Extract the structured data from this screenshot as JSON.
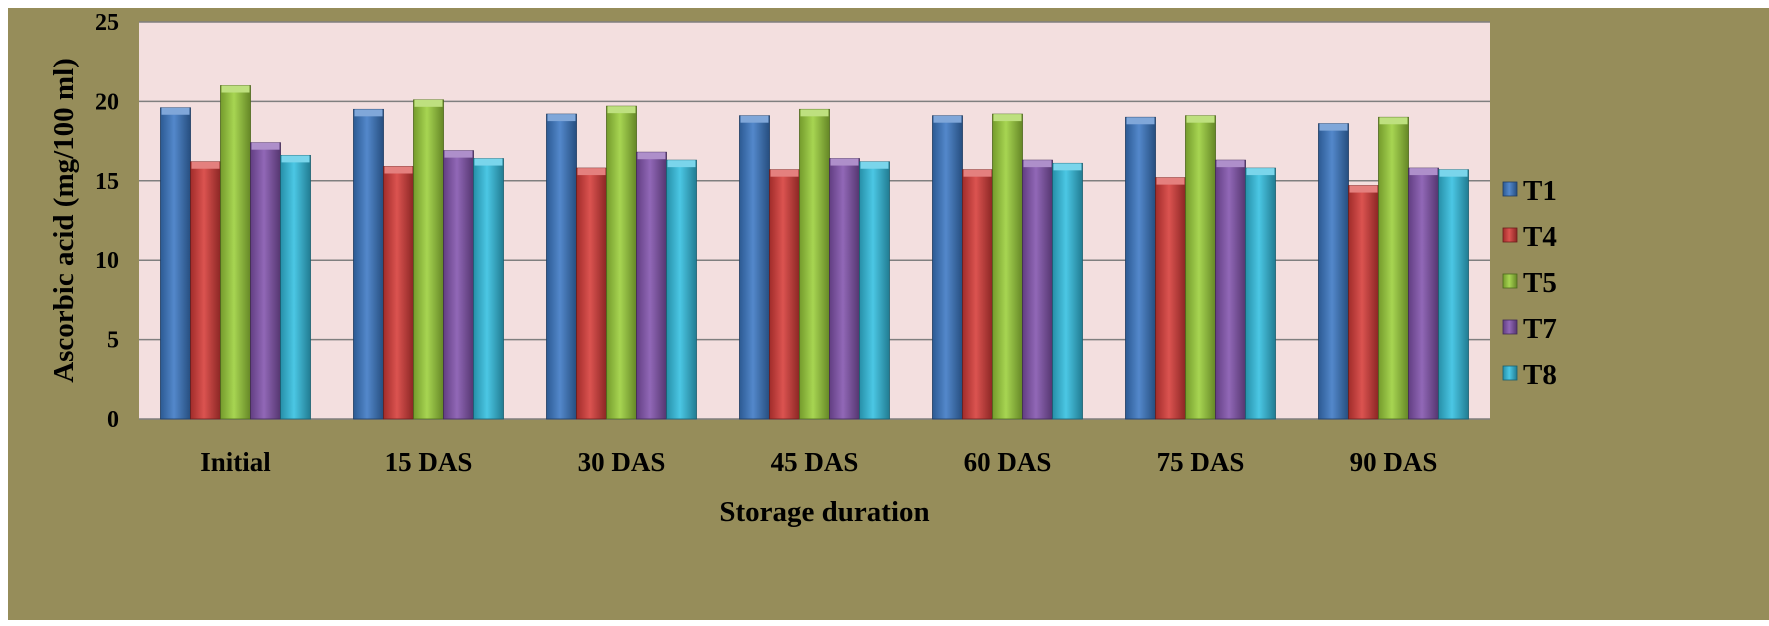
{
  "colors": {
    "T1": "#3b78c4",
    "T4": "#d63b38",
    "T5": "#9bcf3a",
    "T7": "#8253ad",
    "T8": "#33bfe0",
    "plot_bg": "#f3dfdf",
    "frame_bg": "#968d5a"
  },
  "chart_data": {
    "type": "bar",
    "title": "",
    "xlabel": "Storage duration",
    "ylabel": "Ascorbic acid (mg/100 ml)",
    "ylim": [
      0,
      25
    ],
    "yticks": [
      "0",
      "5",
      "10",
      "15",
      "20",
      "25"
    ],
    "grid": true,
    "legend_position": "right",
    "categories": [
      "Initial",
      "15 DAS",
      "30 DAS",
      "45 DAS",
      "60 DAS",
      "75 DAS",
      "90 DAS"
    ],
    "series": [
      {
        "name": "T1",
        "values": [
          19.6,
          19.5,
          19.2,
          19.1,
          19.1,
          19.0,
          18.6
        ]
      },
      {
        "name": "T4",
        "values": [
          16.2,
          15.9,
          15.8,
          15.7,
          15.7,
          15.2,
          14.7
        ]
      },
      {
        "name": "T5",
        "values": [
          21.0,
          20.1,
          19.7,
          19.5,
          19.2,
          19.1,
          19.0
        ]
      },
      {
        "name": "T7",
        "values": [
          17.4,
          16.9,
          16.8,
          16.4,
          16.3,
          16.3,
          15.8
        ]
      },
      {
        "name": "T8",
        "values": [
          16.6,
          16.4,
          16.3,
          16.2,
          16.1,
          15.8,
          15.7
        ]
      }
    ]
  }
}
